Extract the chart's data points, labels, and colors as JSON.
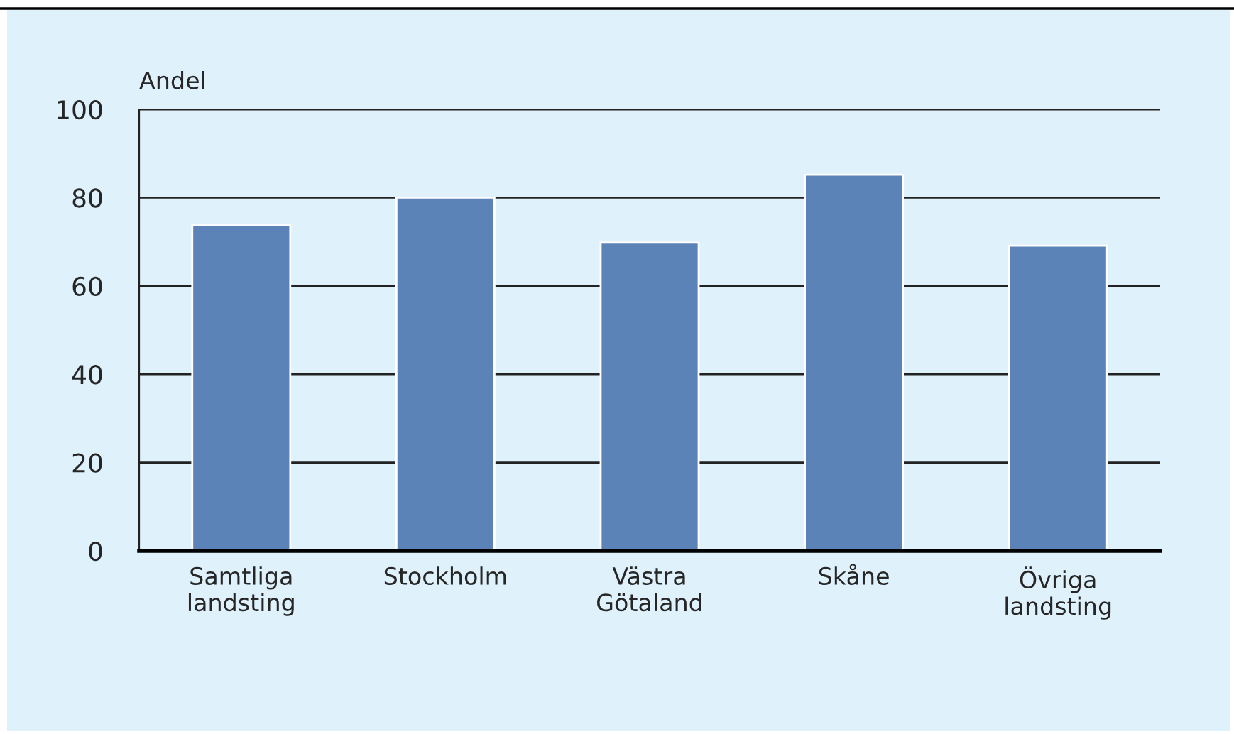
{
  "chart_data": {
    "type": "bar",
    "ylabel": "Andel",
    "categories": [
      "Samtliga\nlandsting",
      "Stockholm",
      "Västra\nGötaland",
      "Skåne",
      "Övriga\nlandsting"
    ],
    "series": [
      {
        "color": "#5b83b7",
        "values": [
          73.7,
          80,
          69.8,
          85.2,
          69.1
        ]
      }
    ],
    "ylim": [
      0,
      100
    ],
    "yticks": [
      0,
      20,
      40,
      60,
      80,
      100
    ],
    "grid": "y"
  }
}
